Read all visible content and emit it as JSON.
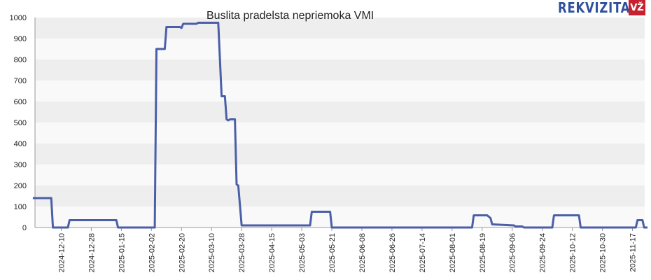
{
  "chart_data": {
    "type": "line",
    "title": "Buslita pradelsta nepriemoka VMI",
    "xlabel": "",
    "ylabel": "",
    "ylim": [
      0,
      1000
    ],
    "yticks": [
      0,
      100,
      200,
      300,
      400,
      500,
      600,
      700,
      800,
      900,
      1000
    ],
    "x_tick_labels": [
      "2024-12-10",
      "2024-12-28",
      "2025-01-15",
      "2025-02-02",
      "2025-02-20",
      "2025-03-10",
      "2025-03-28",
      "2025-04-15",
      "2025-05-03",
      "2025-05-21",
      "2025-06-08",
      "2025-06-26",
      "2025-07-14",
      "2025-08-01",
      "2025-08-19",
      "2025-09-06",
      "2025-09-24",
      "2025-10-12",
      "2025-10-30",
      "2025-11-17"
    ],
    "grid": "horizontal bands",
    "legend": "none",
    "series_color": "#4a5fa8",
    "series": [
      {
        "points": [
          [
            "2024-11-23",
            140
          ],
          [
            "2024-12-04",
            140
          ],
          [
            "2024-12-05",
            0
          ],
          [
            "2024-12-14",
            0
          ],
          [
            "2024-12-15",
            35
          ],
          [
            "2025-01-12",
            35
          ],
          [
            "2025-01-13",
            0
          ],
          [
            "2025-02-04",
            0
          ],
          [
            "2025-02-05",
            850
          ],
          [
            "2025-02-10",
            850
          ],
          [
            "2025-02-11",
            955
          ],
          [
            "2025-02-19",
            955
          ],
          [
            "2025-02-20",
            950
          ],
          [
            "2025-02-21",
            970
          ],
          [
            "2025-03-01",
            970
          ],
          [
            "2025-03-02",
            975
          ],
          [
            "2025-03-14",
            975
          ],
          [
            "2025-03-16",
            625
          ],
          [
            "2025-03-18",
            625
          ],
          [
            "2025-03-19",
            515
          ],
          [
            "2025-03-20",
            510
          ],
          [
            "2025-03-21",
            515
          ],
          [
            "2025-03-24",
            515
          ],
          [
            "2025-03-25",
            205
          ],
          [
            "2025-03-26",
            200
          ],
          [
            "2025-03-28",
            10
          ],
          [
            "2025-05-08",
            10
          ],
          [
            "2025-05-09",
            75
          ],
          [
            "2025-05-20",
            75
          ],
          [
            "2025-05-21",
            0
          ],
          [
            "2025-08-13",
            0
          ],
          [
            "2025-08-14",
            58
          ],
          [
            "2025-08-22",
            58
          ],
          [
            "2025-08-24",
            45
          ],
          [
            "2025-08-25",
            15
          ],
          [
            "2025-09-07",
            10
          ],
          [
            "2025-09-08",
            5
          ],
          [
            "2025-09-12",
            5
          ],
          [
            "2025-09-13",
            0
          ],
          [
            "2025-09-30",
            0
          ],
          [
            "2025-10-01",
            58
          ],
          [
            "2025-10-16",
            58
          ],
          [
            "2025-10-17",
            0
          ],
          [
            "2025-11-19",
            0
          ],
          [
            "2025-11-20",
            35
          ],
          [
            "2025-11-23",
            35
          ],
          [
            "2025-11-24",
            0
          ],
          [
            "2025-11-26",
            0
          ]
        ]
      }
    ]
  },
  "branding": {
    "logo_text": "REKVIZITAI",
    "logo_badge": "VŽ",
    "logo_color": "#2f4f9e",
    "badge_color": "#c8202f"
  }
}
